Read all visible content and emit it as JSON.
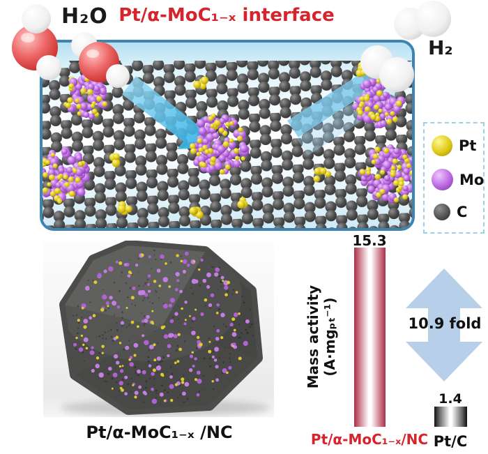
{
  "header": {
    "reactant_label": "H₂O",
    "title": "Pt/α-MoC₁₋ₓ interface",
    "product_label": "H₂",
    "title_color": "#d6242c"
  },
  "legend": {
    "border_color": "#9fcfe6",
    "items": [
      {
        "id": "pt",
        "label": "Pt",
        "color": "#e0ca16"
      },
      {
        "id": "mo",
        "label": "Mo",
        "color": "#b869e0"
      },
      {
        "id": "c",
        "label": "C",
        "color": "#5f5f5f"
      }
    ]
  },
  "nanoparticle_figure": {
    "caption": "Pt/α-MoC₁₋ₓ /NC"
  },
  "chart_data": {
    "type": "bar",
    "ylabel": "Mass activity (A·mgₚₜ⁻¹)",
    "categories": [
      "Pt/α-MoC₁₋ₓ/NC",
      "Pt/C"
    ],
    "values": [
      15.3,
      1.4
    ],
    "value_labels": [
      "15.3",
      "1.4"
    ],
    "annotation": "10.9 fold",
    "bar_styles": [
      {
        "edge_color": "#a93048",
        "center_color": "#ffffff"
      },
      {
        "edge_color": "#101010",
        "center_color": "#ffffff"
      }
    ],
    "category_label_colors": [
      "#d6242c",
      "#111111"
    ],
    "annotation_arrow_color": "#b7cfe9",
    "legend_position": "none",
    "grid": false
  }
}
